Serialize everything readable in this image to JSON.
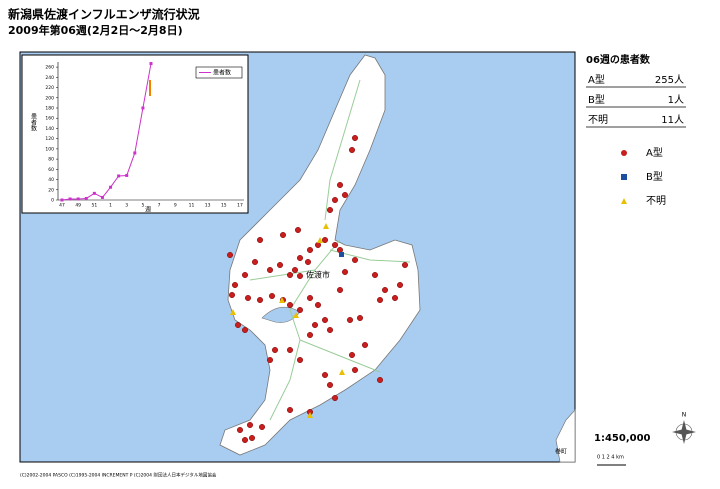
{
  "header": {
    "title": "新潟県佐渡インフルエンザ流行状況",
    "subtitle": "2009年第06週(2月2日～2月8日)"
  },
  "summary": {
    "title": "06週の患者数",
    "rows": [
      {
        "label": "A型",
        "value": "255人"
      },
      {
        "label": "B型",
        "value": "1人"
      },
      {
        "label": "不明",
        "value": "11人"
      }
    ]
  },
  "legend": [
    "A型",
    "B型",
    "不明"
  ],
  "map_labels": [
    "佐渡市",
    "巻町"
  ],
  "scale": {
    "ratio": "1:450,000",
    "bar": "0 1 2    4 km",
    "north": "N"
  },
  "copyright": "(C)2002-2004 PASCO (C)1995-2004 INCREMENT P (C)2004 財団法人日本デジタル地図協会",
  "chart_data": {
    "type": "line",
    "categories": [
      "47",
      null,
      "49",
      null,
      "51",
      null,
      "1",
      null,
      "3",
      null,
      "5",
      null,
      "7",
      null,
      "9",
      null,
      "11",
      null,
      "13",
      null,
      "15",
      null,
      "17"
    ],
    "series": [
      {
        "name": "患者数",
        "color": "#cc33cc",
        "values": [
          0,
          2,
          2,
          3,
          13,
          5,
          25,
          47,
          48,
          92,
          180,
          267,
          null,
          null,
          null,
          null,
          null,
          null,
          null,
          null,
          null,
          null,
          null
        ]
      }
    ],
    "ylim": [
      0,
      270
    ],
    "yticks": [
      0,
      20,
      40,
      60,
      80,
      100,
      120,
      140,
      160,
      180,
      200,
      220,
      240,
      260
    ],
    "ylabel": "患者数",
    "xlabel": "週"
  }
}
